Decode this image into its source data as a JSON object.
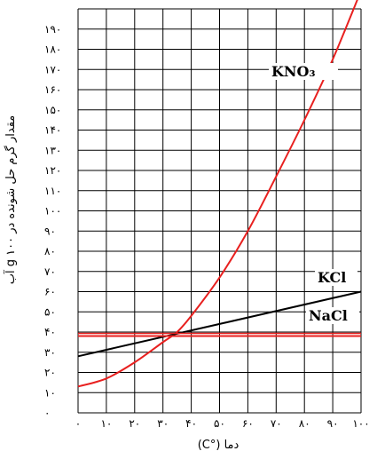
{
  "chart_data": {
    "type": "line",
    "xlabel": "دما (°C)",
    "ylabel": "مقدار گرم حل شونده در g ۱۰۰ آب",
    "x_ticks": [
      "۰",
      "۱۰",
      "۲۰",
      "۳۰",
      "۴۰",
      "۵۰",
      "۶۰",
      "۷۰",
      "۸۰",
      "۹۰",
      "۱۰۰"
    ],
    "y_ticks": [
      "۰",
      "۱۰",
      "۲۰",
      "۳۰",
      "۴۰",
      "۵۰",
      "۶۰",
      "۷۰",
      "۸۰",
      "۹۰",
      "۱۰۰",
      "۱۱۰",
      "۱۲۰",
      "۱۳۰",
      "۱۴۰",
      "۱۵۰",
      "۱۶۰",
      "۱۷۰",
      "۱۸۰",
      "۱۹۰"
    ],
    "xlim": [
      0,
      100
    ],
    "ylim": [
      0,
      200
    ],
    "grid": true,
    "series": [
      {
        "name": "KNO₃",
        "color": "#e8201f",
        "x": [
          0,
          10,
          20,
          30,
          35,
          40,
          50,
          60,
          70,
          80,
          90,
          100
        ],
        "y": [
          13,
          17,
          25,
          35,
          40,
          48,
          67,
          90,
          117,
          145,
          175,
          209
        ]
      },
      {
        "name": "KCl",
        "color": "#000000",
        "x": [
          0,
          100
        ],
        "y": [
          28,
          60
        ]
      },
      {
        "name": "NaCl",
        "color": "#e8201f",
        "x": [
          0,
          100
        ],
        "y": [
          38,
          38
        ]
      }
    ]
  }
}
